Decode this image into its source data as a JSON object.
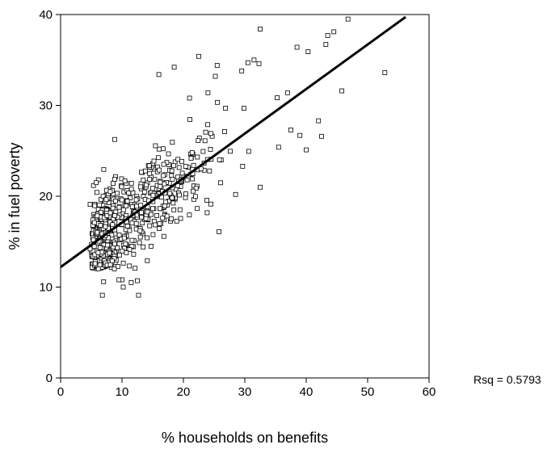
{
  "chart_data": {
    "type": "scatter",
    "title": "",
    "xlabel": "% households on benefits",
    "ylabel": "% in fuel poverty",
    "xlim": [
      0,
      60
    ],
    "ylim": [
      0,
      40
    ],
    "x_ticks": [
      "0",
      "10",
      "20",
      "30",
      "40",
      "50",
      "60"
    ],
    "y_ticks": [
      "0",
      "10",
      "20",
      "30",
      "40"
    ],
    "grid": false,
    "legend": "none",
    "marker": "open-square",
    "annotation": "Rsq = 0.5793",
    "fit_line": {
      "intercept": 12.2,
      "slope": 0.49,
      "x_start": 0,
      "x_end": 56.2
    },
    "notable_points": [
      {
        "x": 46.8,
        "y": 39.5
      },
      {
        "x": 44.5,
        "y": 38.1
      },
      {
        "x": 43.5,
        "y": 37.7
      },
      {
        "x": 32.5,
        "y": 38.4
      },
      {
        "x": 40.3,
        "y": 35.9
      },
      {
        "x": 38.5,
        "y": 36.4
      },
      {
        "x": 43.2,
        "y": 36.7
      },
      {
        "x": 22.5,
        "y": 35.4
      },
      {
        "x": 31.5,
        "y": 35.0
      },
      {
        "x": 30.5,
        "y": 34.7
      },
      {
        "x": 32.3,
        "y": 34.6
      },
      {
        "x": 25.5,
        "y": 34.4
      },
      {
        "x": 18.5,
        "y": 34.2
      },
      {
        "x": 29.5,
        "y": 33.8
      },
      {
        "x": 16.0,
        "y": 33.4
      },
      {
        "x": 25.2,
        "y": 33.2
      },
      {
        "x": 52.8,
        "y": 33.6
      },
      {
        "x": 45.8,
        "y": 31.6
      },
      {
        "x": 21.0,
        "y": 30.8
      },
      {
        "x": 24.0,
        "y": 31.4
      },
      {
        "x": 10.0,
        "y": 10.8
      },
      {
        "x": 11.5,
        "y": 10.5
      },
      {
        "x": 9.5,
        "y": 10.8
      },
      {
        "x": 7.0,
        "y": 10.6
      },
      {
        "x": 10.2,
        "y": 10.0
      },
      {
        "x": 6.8,
        "y": 9.1
      },
      {
        "x": 12.7,
        "y": 9.1
      },
      {
        "x": 12.5,
        "y": 10.7
      },
      {
        "x": 25.8,
        "y": 16.1
      },
      {
        "x": 32.5,
        "y": 21.0
      },
      {
        "x": 28.5,
        "y": 20.2
      },
      {
        "x": 40.0,
        "y": 25.1
      },
      {
        "x": 42.5,
        "y": 26.6
      },
      {
        "x": 42.0,
        "y": 28.3
      },
      {
        "x": 37.5,
        "y": 27.3
      },
      {
        "x": 35.5,
        "y": 25.4
      },
      {
        "x": 4.8,
        "y": 14.2
      },
      {
        "x": 4.8,
        "y": 19.1
      },
      {
        "x": 5.5,
        "y": 17.1
      },
      {
        "x": 6.5,
        "y": 16.8
      }
    ],
    "cloud": {
      "x_min": 5,
      "x_max": 42,
      "count": 640,
      "residual_sd": 2.5
    }
  }
}
